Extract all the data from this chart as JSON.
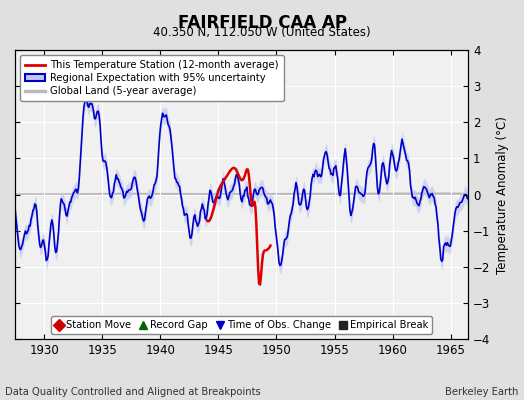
{
  "title": "FAIRFIELD CAA AP",
  "subtitle": "40.350 N, 112.050 W (United States)",
  "ylabel": "Temperature Anomaly (°C)",
  "xlabel_left": "Data Quality Controlled and Aligned at Breakpoints",
  "xlabel_right": "Berkeley Earth",
  "ylim": [
    -4,
    4
  ],
  "xlim": [
    1927.5,
    1966.5
  ],
  "xticks": [
    1930,
    1935,
    1940,
    1945,
    1950,
    1955,
    1960,
    1965
  ],
  "yticks": [
    -4,
    -3,
    -2,
    -1,
    0,
    1,
    2,
    3,
    4
  ],
  "bg_color": "#e0e0e0",
  "plot_bg_color": "#f0f0f0",
  "station_color": "#dd0000",
  "regional_color": "#0000cc",
  "regional_fill_color": "#c0c8f0",
  "global_color": "#bbbbbb",
  "legend_items": [
    "This Temperature Station (12-month average)",
    "Regional Expectation with 95% uncertainty",
    "Global Land (5-year average)"
  ],
  "marker_legend": [
    {
      "label": "Station Move",
      "color": "#cc0000",
      "marker": "D"
    },
    {
      "label": "Record Gap",
      "color": "#006600",
      "marker": "^"
    },
    {
      "label": "Time of Obs. Change",
      "color": "#0000cc",
      "marker": "v"
    },
    {
      "label": "Empirical Break",
      "color": "#222222",
      "marker": "s"
    }
  ]
}
